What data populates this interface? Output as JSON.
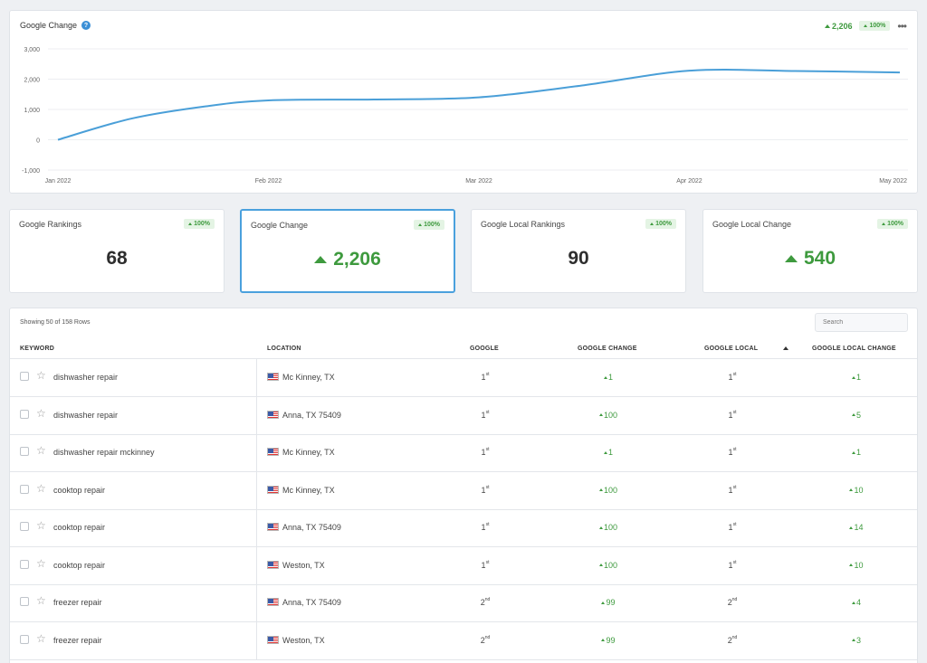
{
  "colors": {
    "line": "#4a9fd8",
    "positive": "#3e9a3e",
    "badge_bg": "#e4f4e4",
    "active_border": "#4aa0dd"
  },
  "chart_panel": {
    "title": "Google Change",
    "help_icon": "question-circle-icon",
    "summary_value": "2,206",
    "summary_badge": "100%",
    "menu_icon": "more-dots-icon"
  },
  "chart_data": {
    "type": "line",
    "title": "Google Change",
    "x": [
      "Jan 2022",
      "Feb 2022",
      "Mar 2022",
      "Apr 2022",
      "May 2022"
    ],
    "yticks": [
      "3,000",
      "2,000",
      "1,000",
      "0",
      "-1,000"
    ],
    "ylim": [
      -1000,
      3000
    ],
    "series": [
      {
        "values": [
          {
            "t": 0,
            "v": 0
          },
          {
            "t": 0.35,
            "v": 700
          },
          {
            "t": 0.7,
            "v": 1100
          },
          {
            "t": 1,
            "v": 1300
          },
          {
            "t": 1.5,
            "v": 1330
          },
          {
            "t": 2,
            "v": 1400
          },
          {
            "t": 2.5,
            "v": 1800
          },
          {
            "t": 3,
            "v": 2280
          },
          {
            "t": 3.5,
            "v": 2270
          },
          {
            "t": 4,
            "v": 2220
          }
        ]
      }
    ],
    "grid": true
  },
  "cards": [
    {
      "title": "Google Rankings",
      "badge": "100%",
      "value": "68",
      "positive": false,
      "active": false
    },
    {
      "title": "Google Change",
      "badge": "100%",
      "value": "2,206",
      "positive": true,
      "active": true
    },
    {
      "title": "Google Local Rankings",
      "badge": "100%",
      "value": "90",
      "positive": false,
      "active": false
    },
    {
      "title": "Google Local Change",
      "badge": "100%",
      "value": "540",
      "positive": true,
      "active": false
    }
  ],
  "table": {
    "showing": "Showing 50 of 158 Rows",
    "search_placeholder": "Search",
    "headers": [
      "KEYWORD",
      "LOCATION",
      "GOOGLE",
      "GOOGLE CHANGE",
      "GOOGLE LOCAL",
      "GOOGLE LOCAL CHANGE"
    ],
    "rows": [
      {
        "keyword": "dishwasher repair",
        "location": "Mc Kinney, TX",
        "google": "1",
        "google_sup": "st",
        "google_change": "1",
        "local": "1",
        "local_sup": "st",
        "local_change": "1"
      },
      {
        "keyword": "dishwasher repair",
        "location": "Anna, TX 75409",
        "google": "1",
        "google_sup": "st",
        "google_change": "100",
        "local": "1",
        "local_sup": "st",
        "local_change": "5"
      },
      {
        "keyword": "dishwasher repair mckinney",
        "location": "Mc Kinney, TX",
        "google": "1",
        "google_sup": "st",
        "google_change": "1",
        "local": "1",
        "local_sup": "st",
        "local_change": "1"
      },
      {
        "keyword": "cooktop repair",
        "location": "Mc Kinney, TX",
        "google": "1",
        "google_sup": "st",
        "google_change": "100",
        "local": "1",
        "local_sup": "st",
        "local_change": "10"
      },
      {
        "keyword": "cooktop repair",
        "location": "Anna, TX 75409",
        "google": "1",
        "google_sup": "st",
        "google_change": "100",
        "local": "1",
        "local_sup": "st",
        "local_change": "14"
      },
      {
        "keyword": "cooktop repair",
        "location": "Weston, TX",
        "google": "1",
        "google_sup": "st",
        "google_change": "100",
        "local": "1",
        "local_sup": "st",
        "local_change": "10"
      },
      {
        "keyword": "freezer repair",
        "location": "Anna, TX 75409",
        "google": "2",
        "google_sup": "nd",
        "google_change": "99",
        "local": "2",
        "local_sup": "nd",
        "local_change": "4"
      },
      {
        "keyword": "freezer repair",
        "location": "Weston, TX",
        "google": "2",
        "google_sup": "nd",
        "google_change": "99",
        "local": "2",
        "local_sup": "nd",
        "local_change": "3"
      }
    ]
  }
}
